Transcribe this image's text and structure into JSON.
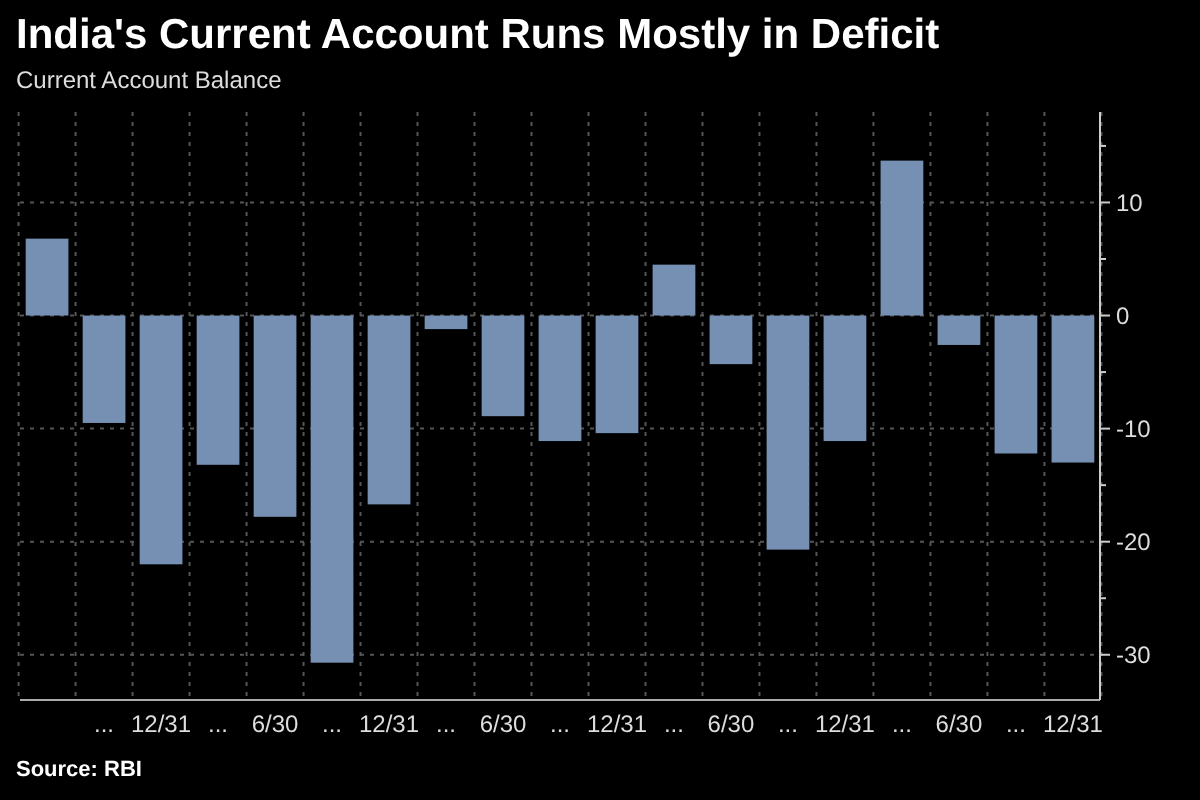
{
  "chart_data": {
    "type": "bar",
    "title": "India's Current Account Runs Mostly in Deficit",
    "subtitle": "Current Account Balance",
    "categories": [
      null,
      "...",
      "12/31",
      "...",
      "6/30",
      "...",
      "12/31",
      "...",
      "6/30",
      "...",
      "12/31",
      "...",
      "6/30",
      "...",
      "12/31",
      "...",
      "6/30",
      "...",
      "12/31"
    ],
    "values": [
      6.8,
      -9.5,
      -22.0,
      -13.2,
      -17.8,
      -30.7,
      -16.7,
      -1.2,
      -8.9,
      -11.1,
      -10.4,
      4.5,
      -4.3,
      -20.7,
      -11.1,
      13.7,
      -2.6,
      -12.2,
      -13.0
    ],
    "color": "#7690b4",
    "ylim": [
      -34,
      18
    ],
    "yticks": [
      {
        "value": 15,
        "label": null
      },
      10,
      {
        "value": 5,
        "label": null
      },
      0,
      {
        "value": -5,
        "label": null
      },
      -10,
      {
        "value": -15,
        "label": null
      },
      -20,
      {
        "value": -25,
        "label": null
      },
      -30
    ],
    "grid": true,
    "annotations": [
      "Source: RBI"
    ]
  }
}
